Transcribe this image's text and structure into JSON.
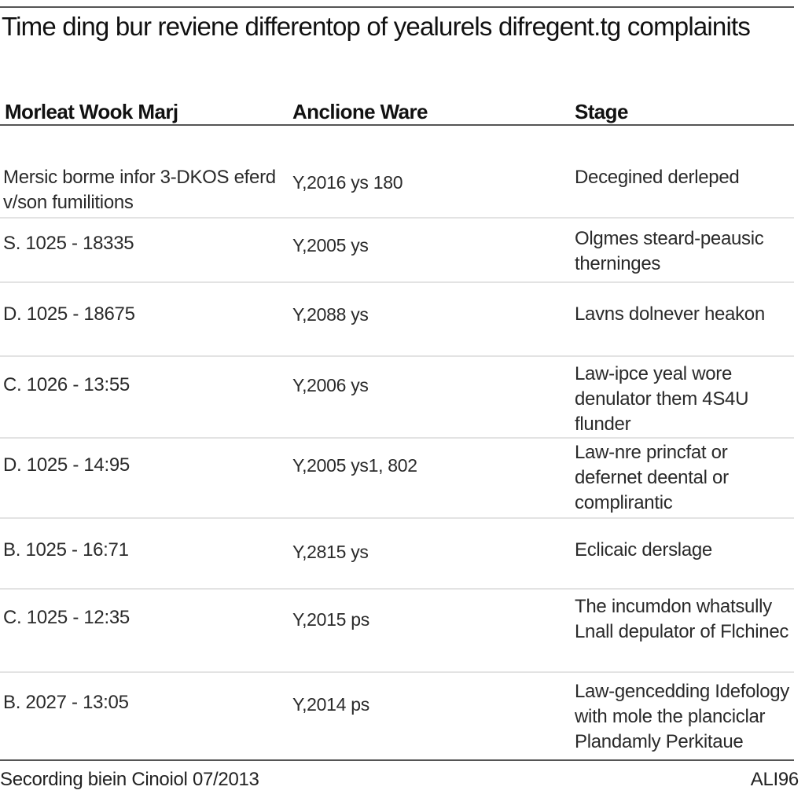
{
  "title": "Time ding bur reviene differentop of yealurels difregent.tg complainits",
  "table": {
    "headers": [
      "Morleat Wook Marj",
      "Anclione Ware",
      "Stage"
    ],
    "rows": [
      {
        "ref": "Mersic borme infor 3-DKOS eferd v/son fumilitions",
        "ware": "Y,2016 ys 180",
        "stage": "Decegined derleped"
      },
      {
        "ref": "S. 1025 - 18335",
        "ware": "Y,2005 ys",
        "stage": "Olgmes steard-peausic therninges"
      },
      {
        "ref": "D. 1025 - 18675",
        "ware": "Y,2088 ys",
        "stage": "Lavns dolnever heakon"
      },
      {
        "ref": "C. 1026 - 13:55",
        "ware": "Y,2006 ys",
        "stage": "Law-ipce yeal wore denulator them 4S4U flunder"
      },
      {
        "ref": "D. 1025 - 14:95",
        "ware": "Y,2005 ys1, 802",
        "stage": "Law-nre princfat or defernet deental or complirantic"
      },
      {
        "ref": "B. 1025 - 16:71",
        "ware": "Y,2815 ys",
        "stage": "Eclicaic derslage"
      },
      {
        "ref": "C. 1025 - 12:35",
        "ware": "Y,2015 ps",
        "stage": "The incumdon whatsully Lnall depulator of Flchinec"
      },
      {
        "ref": "B. 2027 - 13:05",
        "ware": "Y,2014 ps",
        "stage": "Law-gencedding Idefology with mole the planciclar Plandamly Perkitaue"
      }
    ]
  },
  "footer": {
    "source": "Secording biein Cinoiol 07/2013",
    "code": "ALI96"
  }
}
